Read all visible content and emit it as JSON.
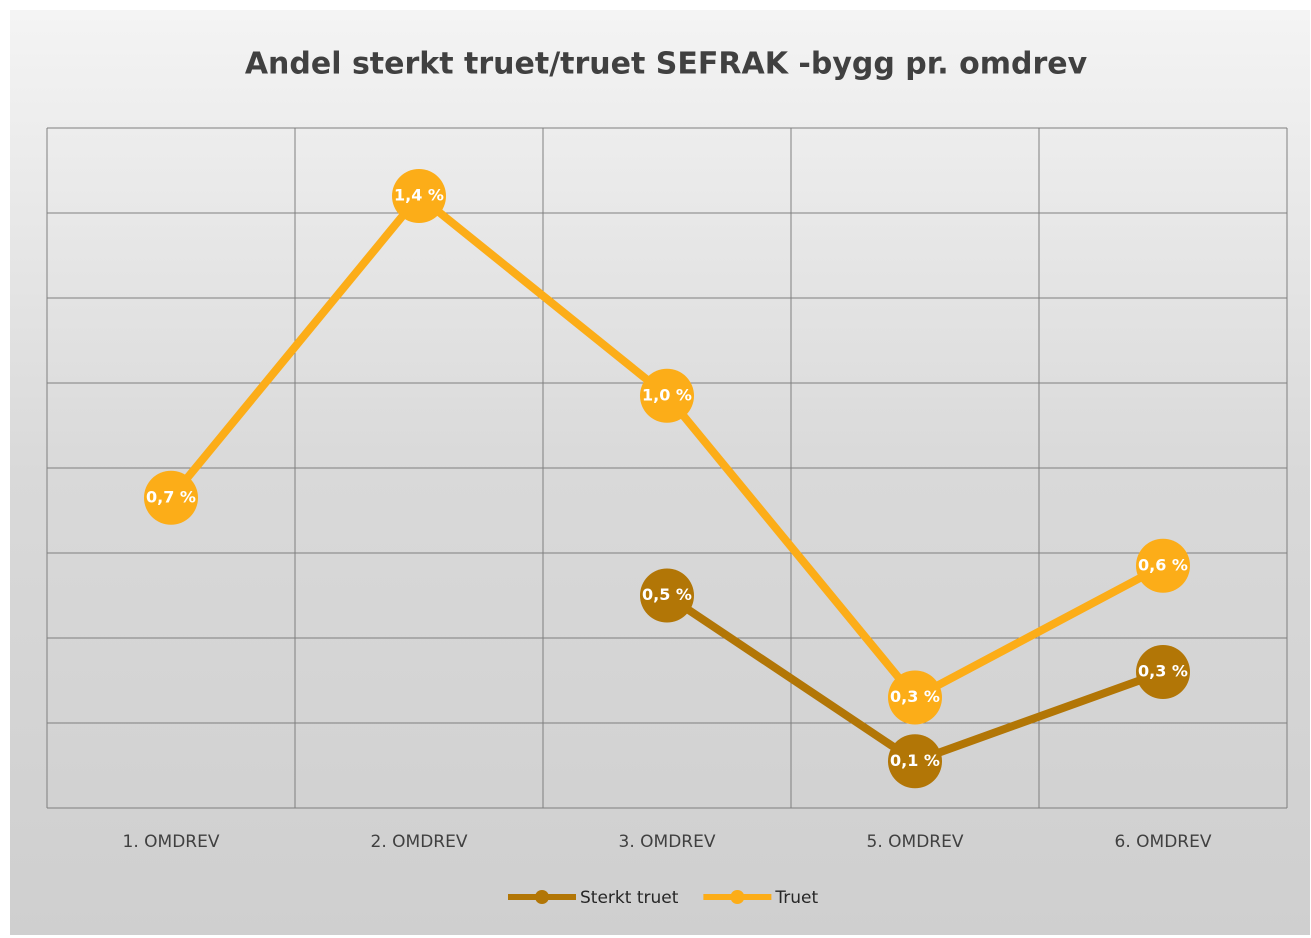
{
  "chart_data": {
    "type": "line",
    "title": "Andel sterkt truet/truet SEFRAK  -bygg pr. omdrev",
    "categories": [
      "1. OMDREV",
      "2. OMDREV",
      "3. OMDREV",
      "5. OMDREV",
      "6. OMDREV"
    ],
    "series": [
      {
        "name": "Sterkt truet",
        "color": "#b27606",
        "values": [
          null,
          null,
          0.5,
          0.11,
          0.32
        ],
        "value_labels": [
          null,
          null,
          "0,5 %",
          "0,1 %",
          "0,3 %"
        ]
      },
      {
        "name": "Truet",
        "color": "#fcad18",
        "values": [
          0.73,
          1.44,
          0.97,
          0.26,
          0.57
        ],
        "value_labels": [
          "0,7 %",
          "1,4 %",
          "1,0 %",
          "0,3 %",
          "0,6 %"
        ]
      }
    ],
    "ylim": [
      0,
      1.6
    ],
    "yticks": [
      0,
      0.2,
      0.4,
      0.6,
      0.8,
      1,
      1.2,
      1.4,
      1.6
    ],
    "grid": true,
    "legend": "bottom"
  }
}
